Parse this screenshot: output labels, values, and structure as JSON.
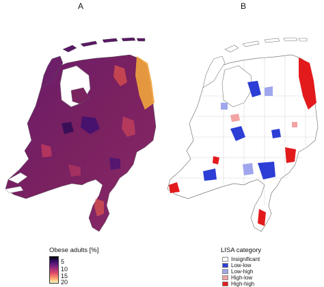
{
  "panels": {
    "a": {
      "label": "A"
    },
    "b": {
      "label": "B"
    }
  },
  "legend_a": {
    "title": "Obese adults [%]",
    "ticks": [
      "5",
      "10",
      "15",
      "20"
    ],
    "color_scale": [
      "#000004",
      "#3b0f70",
      "#8c2981",
      "#de4968",
      "#fe9f6d",
      "#fcfdbf"
    ]
  },
  "legend_b": {
    "title": "LISA category",
    "items": [
      {
        "label": "Insignificant",
        "color": "#ffffff"
      },
      {
        "label": "Low-low",
        "color": "#2c3ed6"
      },
      {
        "label": "Low-high",
        "color": "#9fa6ee"
      },
      {
        "label": "High-low",
        "color": "#f4a3a3"
      },
      {
        "label": "High-high",
        "color": "#e31a1c"
      }
    ]
  }
}
